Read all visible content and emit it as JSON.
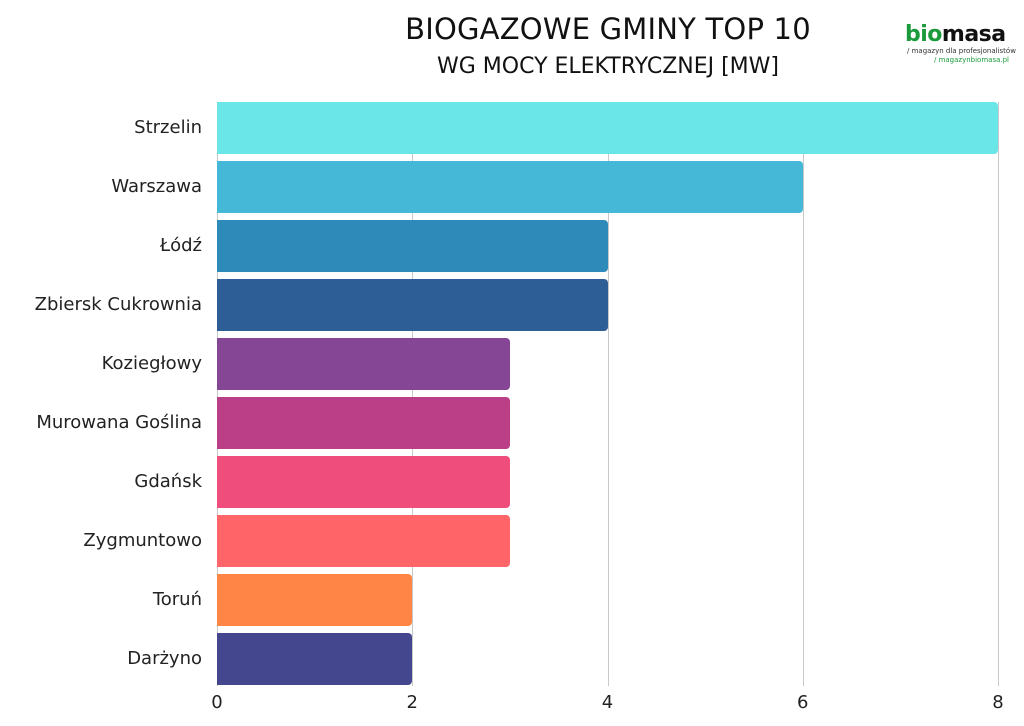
{
  "chart_data": {
    "type": "bar",
    "orientation": "horizontal",
    "title": "BIOGAZOWE GMINY TOP 10",
    "subtitle": "WG MOCY ELEKTRYCZNEJ [MW]",
    "xlabel": "",
    "ylabel": "",
    "xlim": [
      0,
      8
    ],
    "x_ticks": [
      "0",
      "2",
      "4",
      "6",
      "8"
    ],
    "grid": "vertical",
    "legend": "none",
    "categories": [
      "Strzelin",
      "Warszawa",
      "Łódź",
      "Zbiersk Cukrownia",
      "Koziegłowy",
      "Murowana Goślina",
      "Gdańsk",
      "Zygmuntowo",
      "Toruń",
      "Darżyno"
    ],
    "values": [
      8,
      6,
      4,
      4,
      3,
      3,
      3,
      3,
      2,
      2
    ],
    "colors": [
      "#6ae5e8",
      "#44b8d6",
      "#2e8ab8",
      "#2e5e96",
      "#864696",
      "#bb3f86",
      "#ef4e7c",
      "#ff6468",
      "#ff8546",
      "#44478e"
    ]
  },
  "logo": {
    "bio": "bio",
    "masa": "masa",
    "tagline": "/ magazyn dla profesjonalistów",
    "url": "/ magazynbiomasa.pl"
  }
}
